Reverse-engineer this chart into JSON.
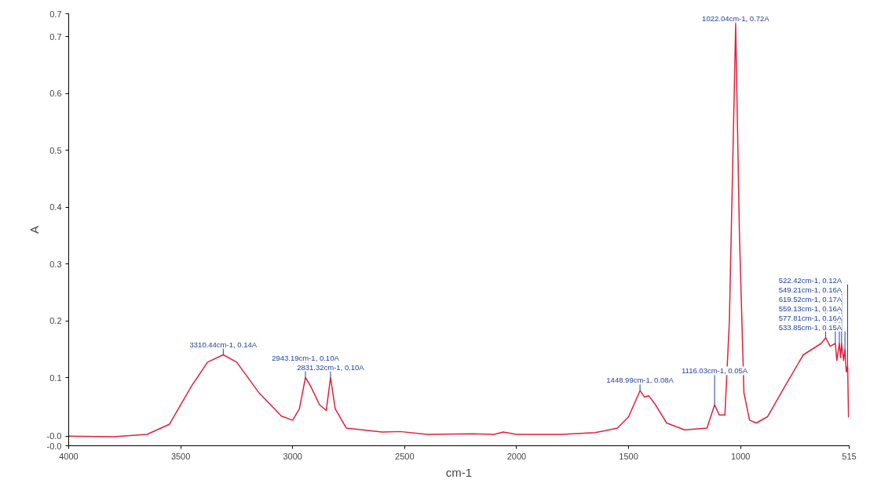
{
  "chart_data": {
    "type": "line",
    "xlabel": "cm-1",
    "ylabel": "A",
    "xlim": [
      4000,
      515
    ],
    "xticks": [
      4000,
      3500,
      3000,
      2500,
      2000,
      1500,
      1000,
      515
    ],
    "ylim": [
      -0.02,
      0.74
    ],
    "yticks": [
      {
        "value": -0.02,
        "label": "-0.0"
      },
      {
        "value": -0.003,
        "label": "-0.0"
      },
      0.1,
      0.2,
      0.3,
      0.4,
      0.5,
      0.6,
      0.7,
      {
        "value": 0.74,
        "label": "0.7"
      }
    ],
    "series": [
      {
        "color": "#e0203c",
        "x": [
          4000,
          3800,
          3650,
          3550,
          3450,
          3380,
          3310,
          3250,
          3150,
          3050,
          3000,
          2970,
          2943,
          2920,
          2880,
          2850,
          2831,
          2810,
          2760,
          2600,
          2520,
          2400,
          2200,
          2100,
          2060,
          2000,
          1800,
          1650,
          1550,
          1500,
          1449,
          1430,
          1410,
          1380,
          1330,
          1250,
          1150,
          1116,
          1095,
          1070,
          1050,
          1022,
          1005,
          985,
          960,
          930,
          880,
          800,
          720,
          640,
          620,
          600,
          577,
          570,
          559,
          553,
          549,
          540,
          534,
          528,
          522,
          518
        ],
        "values": [
          -0.003,
          -0.004,
          0.0,
          0.018,
          0.086,
          0.127,
          0.14,
          0.127,
          0.073,
          0.032,
          0.025,
          0.045,
          0.1,
          0.085,
          0.052,
          0.042,
          0.1,
          0.045,
          0.011,
          0.004,
          0.005,
          0.0,
          0.001,
          0.0,
          0.004,
          0.0,
          0.0,
          0.003,
          0.011,
          0.031,
          0.077,
          0.066,
          0.068,
          0.052,
          0.02,
          0.008,
          0.011,
          0.052,
          0.034,
          0.034,
          0.2,
          0.72,
          0.35,
          0.073,
          0.025,
          0.02,
          0.031,
          0.086,
          0.14,
          0.16,
          0.17,
          0.155,
          0.16,
          0.13,
          0.16,
          0.135,
          0.16,
          0.13,
          0.15,
          0.11,
          0.12,
          0.03
        ]
      }
    ],
    "annotations": [
      {
        "text": "1022.04cm-1, 0.72A",
        "x": 1022,
        "y": 0.72
      },
      {
        "text": "3310.44cm-1, 0.14A",
        "x": 3310,
        "y": 0.14
      },
      {
        "text": "2831.32cm-1, 0.10A",
        "x": 2831,
        "y": 0.1
      },
      {
        "text": "2943.19cm-1, 0.10A",
        "x": 2943,
        "y": 0.1
      },
      {
        "text": "1448.99cm-1, 0.08A",
        "x": 1449,
        "y": 0.077
      },
      {
        "text": "1116.03cm-1, 0.05A",
        "x": 1116,
        "y": 0.052
      },
      {
        "text": "533.85cm-1, 0.15A",
        "x": 534,
        "y": 0.15
      },
      {
        "text": "577.81cm-1, 0.16A",
        "x": 577,
        "y": 0.16
      },
      {
        "text": "559.13cm-1, 0.16A",
        "x": 559,
        "y": 0.16
      },
      {
        "text": "619.52cm-1, 0.17A",
        "x": 620,
        "y": 0.17
      },
      {
        "text": "549.21cm-1, 0.16A",
        "x": 549,
        "y": 0.16
      },
      {
        "text": "522.42cm-1, 0.12A",
        "x": 522,
        "y": 0.12
      }
    ]
  }
}
